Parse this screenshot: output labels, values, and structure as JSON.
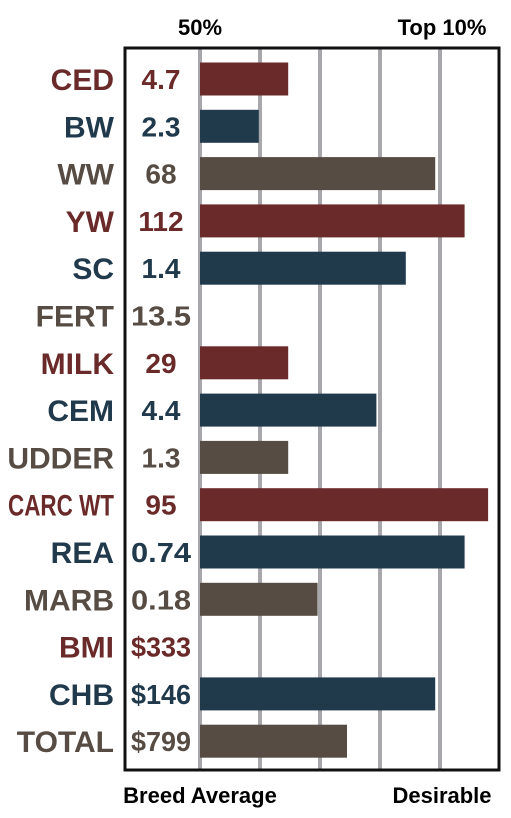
{
  "colors": {
    "maroon": "#6b2a2a",
    "navy": "#203a4c",
    "taupe": "#564c43",
    "grid": "#a7a7ac",
    "border": "#111111"
  },
  "chart_data": {
    "type": "bar",
    "orientation": "horizontal",
    "top_labels": [
      "50%",
      "Top 10%"
    ],
    "bottom_labels": [
      "Breed Average",
      "Desirable"
    ],
    "xlim": [
      0,
      100
    ],
    "grid": true,
    "categories": [
      "CED",
      "BW",
      "WW",
      "YW",
      "SC",
      "FERT",
      "MILK",
      "CEM",
      "UDDER",
      "CARC WT",
      "REA",
      "MARB",
      "BMI",
      "CHB",
      "TOTAL"
    ],
    "value_labels": [
      "4.7",
      "2.3",
      "68",
      "112",
      "1.4",
      "13.5",
      "29",
      "4.4",
      "1.3",
      "95",
      "0.74",
      "0.18",
      "$333",
      "$146",
      "$799"
    ],
    "values": [
      30,
      20,
      80,
      90,
      70,
      0,
      30,
      60,
      30,
      98,
      90,
      40,
      0,
      80,
      50
    ],
    "color_groups": [
      "maroon",
      "navy",
      "taupe",
      "maroon",
      "navy",
      "taupe",
      "maroon",
      "navy",
      "taupe",
      "maroon",
      "navy",
      "taupe",
      "maroon",
      "navy",
      "taupe"
    ]
  }
}
